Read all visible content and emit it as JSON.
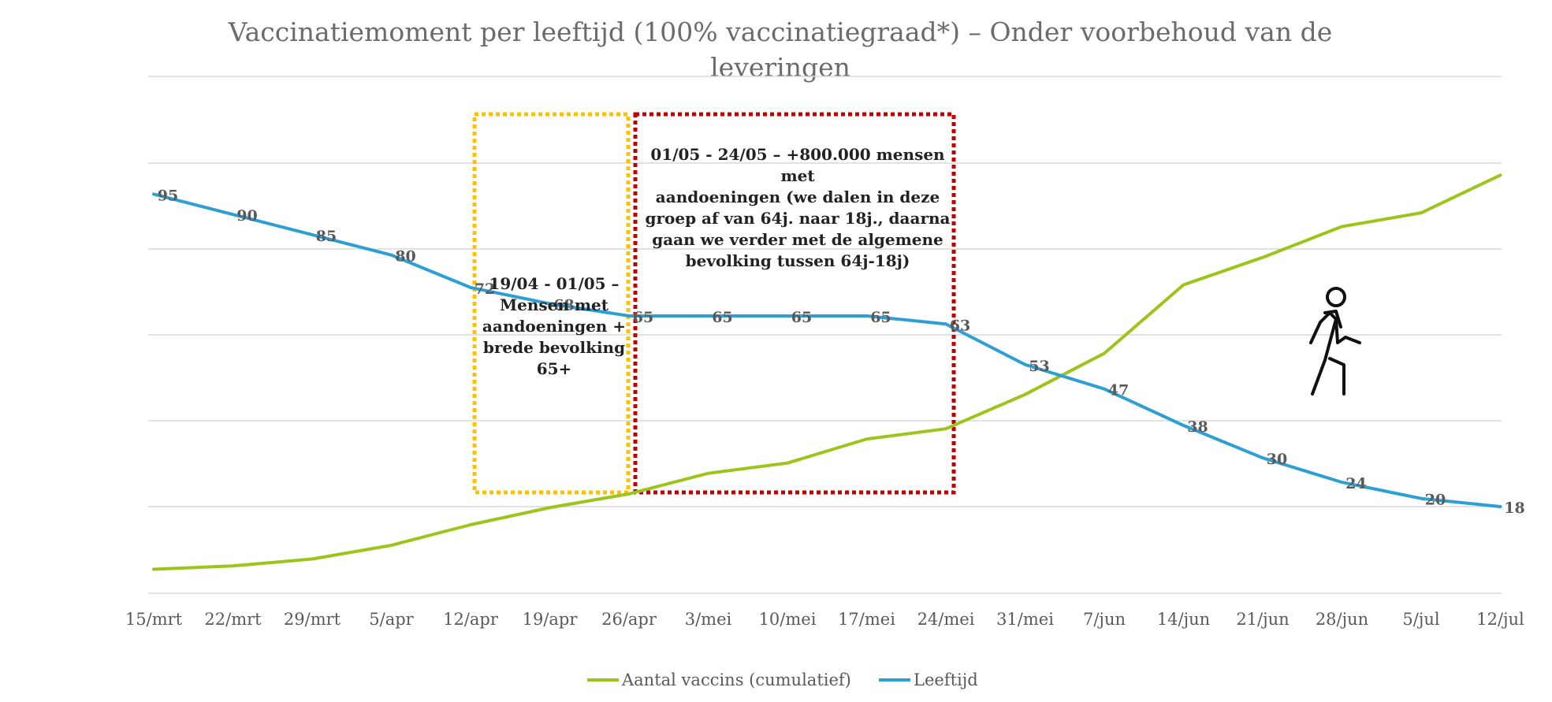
{
  "chart_data": {
    "type": "line",
    "title_lines": [
      "Vaccinatiemoment per leeftijd (100% vaccinatiegraad*) – Onder voorbehoud van de",
      "leveringen"
    ],
    "categories": [
      "15/mrt",
      "22/mrt",
      "29/mrt",
      "5/apr",
      "12/apr",
      "19/apr",
      "26/apr",
      "3/mei",
      "10/mei",
      "17/mei",
      "24/mei",
      "31/mei",
      "7/jun",
      "14/jun",
      "21/jun",
      "28/jun",
      "5/jul",
      "12/jul"
    ],
    "series": [
      {
        "name": "Aantal vaccins (cumulatief)",
        "color": "#9dc41a",
        "values": [
          7,
          8,
          10,
          14,
          20,
          25,
          29,
          35,
          38,
          45,
          48,
          58,
          70,
          90,
          98,
          107,
          111,
          122
        ],
        "show_labels": false
      },
      {
        "name": "Leeftijd",
        "color": "#2e9fd4",
        "values": [
          95,
          90,
          85,
          80,
          72,
          68,
          65,
          65,
          65,
          65,
          63,
          53,
          47,
          38,
          30,
          24,
          20,
          18
        ],
        "show_labels": true,
        "label_scale": [
          18,
          95
        ]
      }
    ],
    "grid": true,
    "legend_position": "bottom",
    "annotations": [
      {
        "text_lines": [
          "19/04  - 01/05 –",
          "Mensen met",
          "aandoeningen +",
          "brede bevolking",
          "65+"
        ],
        "border_color": "#ffc000",
        "from_category": "12/apr",
        "to_category": "26/apr"
      },
      {
        "text_lines": [
          "01/05  - 24/05 – +800.000 mensen met",
          "aandoeningen (we dalen in deze",
          "groep af van 64j. naar 18j., daarna",
          "gaan we verder met de algemene",
          "bevolking tussen 64j-18j)"
        ],
        "border_color": "#c00000",
        "from_category": "26/apr",
        "to_category": "24/mei"
      }
    ],
    "icon": "walking-person-icon"
  }
}
